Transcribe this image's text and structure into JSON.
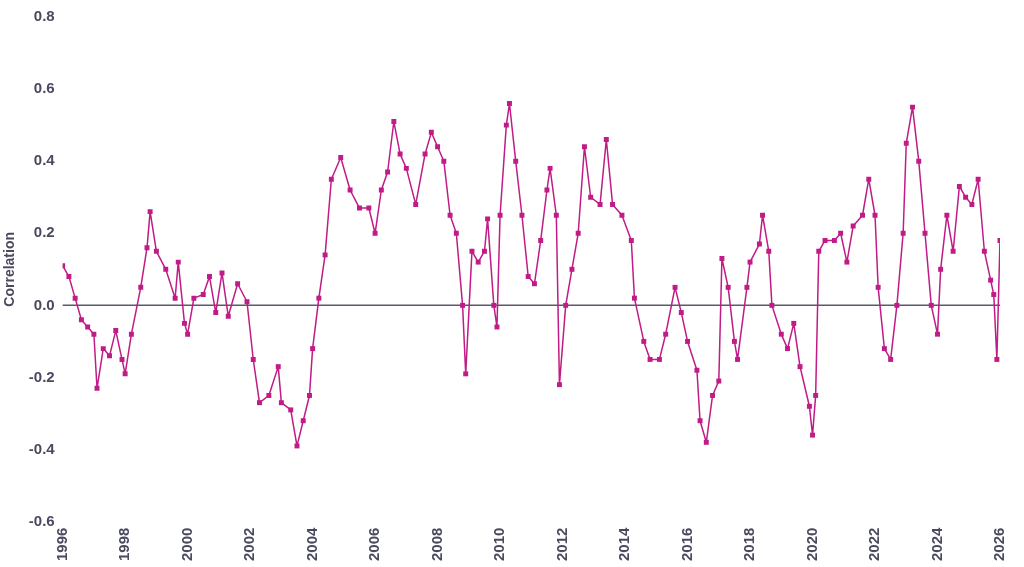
{
  "chart_data": {
    "type": "line",
    "ylabel": "Correlation",
    "marker": "square",
    "line_style": "solid",
    "grid": false,
    "legend": false,
    "xlim": [
      1996,
      2026
    ],
    "xticks": [
      1996,
      1998,
      2000,
      2002,
      2004,
      2006,
      2008,
      2010,
      2012,
      2014,
      2016,
      2018,
      2020,
      2022,
      2024,
      2026
    ],
    "ylim": [
      -0.6,
      0.8
    ],
    "yticks": [
      {
        "value": -0.6,
        "label": "-0.6"
      },
      {
        "value": -0.4,
        "label": "-0.4"
      },
      {
        "value": -0.2,
        "label": "-0.2"
      },
      {
        "value": 0,
        "label": "0.0"
      },
      {
        "value": 0.2,
        "label": "0.2"
      },
      {
        "value": 0.4,
        "label": "0.4"
      },
      {
        "value": 0.6,
        "label": "0.6"
      },
      {
        "value": 0.8,
        "label": "0.8"
      }
    ],
    "ref_lines": [
      {
        "axis": "y",
        "value": 0,
        "color": "#5a5a6a"
      }
    ],
    "series": [
      {
        "color": "#c01b86",
        "x": [
          1996.0,
          1996.2,
          1996.4,
          1996.6,
          1996.8,
          1997.0,
          1997.1,
          1997.3,
          1997.5,
          1997.7,
          1997.9,
          1998.0,
          1998.2,
          1998.5,
          1998.7,
          1998.8,
          1999.0,
          1999.3,
          1999.6,
          1999.7,
          1999.9,
          2000.0,
          2000.2,
          2000.5,
          2000.7,
          2000.9,
          2001.1,
          2001.3,
          2001.6,
          2001.9,
          2002.1,
          2002.3,
          2002.6,
          2002.9,
          2003.0,
          2003.3,
          2003.5,
          2003.7,
          2003.9,
          2004.0,
          2004.2,
          2004.4,
          2004.6,
          2004.9,
          2005.2,
          2005.5,
          2005.8,
          2006.0,
          2006.2,
          2006.4,
          2006.6,
          2006.8,
          2007.0,
          2007.3,
          2007.6,
          2007.8,
          2008.0,
          2008.2,
          2008.4,
          2008.6,
          2008.8,
          2008.9,
          2009.1,
          2009.3,
          2009.5,
          2009.6,
          2009.8,
          2009.9,
          2010.0,
          2010.2,
          2010.3,
          2010.5,
          2010.7,
          2010.9,
          2011.1,
          2011.3,
          2011.5,
          2011.6,
          2011.8,
          2011.9,
          2012.1,
          2012.3,
          2012.5,
          2012.7,
          2012.9,
          2013.2,
          2013.4,
          2013.6,
          2013.9,
          2014.2,
          2014.3,
          2014.6,
          2014.8,
          2015.1,
          2015.3,
          2015.6,
          2015.8,
          2016.0,
          2016.3,
          2016.4,
          2016.6,
          2016.8,
          2017.0,
          2017.1,
          2017.3,
          2017.5,
          2017.6,
          2017.9,
          2018.0,
          2018.3,
          2018.4,
          2018.6,
          2018.7,
          2019.0,
          2019.2,
          2019.4,
          2019.6,
          2019.9,
          2020.0,
          2020.1,
          2020.2,
          2020.4,
          2020.7,
          2020.9,
          2021.1,
          2021.3,
          2021.6,
          2021.8,
          2022.0,
          2022.1,
          2022.3,
          2022.5,
          2022.7,
          2022.9,
          2023.0,
          2023.2,
          2023.4,
          2023.6,
          2023.8,
          2024.0,
          2024.1,
          2024.3,
          2024.5,
          2024.7,
          2024.9,
          2025.1,
          2025.3,
          2025.5,
          2025.7,
          2025.8,
          2025.9,
          2026.0
        ],
        "values": [
          0.11,
          0.08,
          0.02,
          -0.04,
          -0.06,
          -0.08,
          -0.23,
          -0.12,
          -0.14,
          -0.07,
          -0.15,
          -0.19,
          -0.08,
          0.05,
          0.16,
          0.26,
          0.15,
          0.1,
          0.02,
          0.12,
          -0.05,
          -0.08,
          0.02,
          0.03,
          0.08,
          -0.02,
          0.09,
          -0.03,
          0.06,
          0.01,
          -0.15,
          -0.27,
          -0.25,
          -0.17,
          -0.27,
          -0.29,
          -0.39,
          -0.32,
          -0.25,
          -0.12,
          0.02,
          0.14,
          0.35,
          0.41,
          0.32,
          0.27,
          0.27,
          0.2,
          0.32,
          0.37,
          0.51,
          0.42,
          0.38,
          0.28,
          0.42,
          0.48,
          0.44,
          0.4,
          0.25,
          0.2,
          0.0,
          -0.19,
          0.15,
          0.12,
          0.15,
          0.24,
          0.0,
          -0.06,
          0.25,
          0.5,
          0.56,
          0.4,
          0.25,
          0.08,
          0.06,
          0.18,
          0.32,
          0.38,
          0.25,
          -0.22,
          0.0,
          0.1,
          0.2,
          0.44,
          0.3,
          0.28,
          0.46,
          0.28,
          0.25,
          0.18,
          0.02,
          -0.1,
          -0.15,
          -0.15,
          -0.08,
          0.05,
          -0.02,
          -0.1,
          -0.18,
          -0.32,
          -0.38,
          -0.25,
          -0.21,
          0.13,
          0.05,
          -0.1,
          -0.15,
          0.05,
          0.12,
          0.17,
          0.25,
          0.15,
          0.0,
          -0.08,
          -0.12,
          -0.05,
          -0.17,
          -0.28,
          -0.36,
          -0.25,
          0.15,
          0.18,
          0.18,
          0.2,
          0.12,
          0.22,
          0.25,
          0.35,
          0.25,
          0.05,
          -0.12,
          -0.15,
          0.0,
          0.2,
          0.45,
          0.55,
          0.4,
          0.2,
          0.0,
          -0.08,
          0.1,
          0.25,
          0.15,
          0.33,
          0.3,
          0.28,
          0.35,
          0.15,
          0.07,
          0.03,
          -0.15,
          0.18
        ]
      }
    ]
  }
}
